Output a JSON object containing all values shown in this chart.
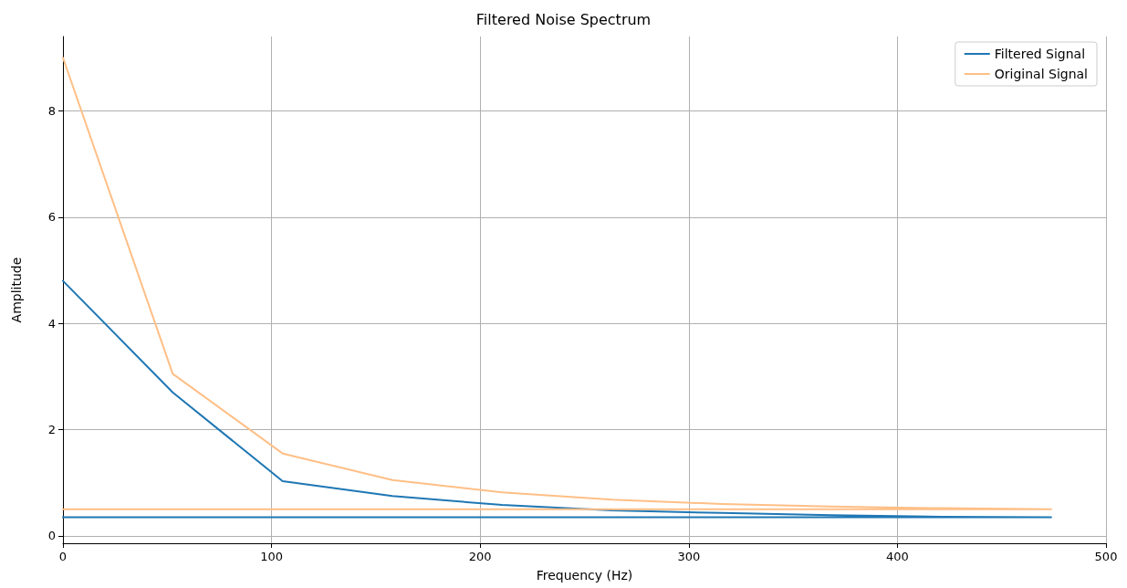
{
  "chart_data": {
    "type": "line",
    "title": "Filtered Noise Spectrum",
    "xlabel": "Frequency (Hz)",
    "ylabel": "Amplitude",
    "series": [
      {
        "name": "Filtered Signal",
        "color": "#1f77b4",
        "x": [
          0,
          52.6,
          105.3,
          157.9,
          210.5,
          263.2,
          315.8,
          368.4,
          421.1,
          473.7,
          0
        ],
        "values": [
          4.8,
          2.7,
          1.03,
          0.75,
          0.58,
          0.48,
          0.43,
          0.39,
          0.36,
          0.35,
          0.35
        ]
      },
      {
        "name": "Original Signal",
        "color": "#ffbf86",
        "x": [
          0,
          52.6,
          105.3,
          157.9,
          210.5,
          263.2,
          315.8,
          368.4,
          421.1,
          473.7,
          0
        ],
        "values": [
          9.0,
          3.05,
          1.55,
          1.05,
          0.82,
          0.68,
          0.6,
          0.55,
          0.52,
          0.5,
          0.5
        ]
      }
    ],
    "xlim": [
      0,
      500
    ],
    "xticks": [
      0,
      100,
      200,
      300,
      400,
      500
    ],
    "ylim": [
      -0.14,
      9.4
    ],
    "yticks": [
      0,
      2,
      4,
      6,
      8
    ],
    "grid": true,
    "legend": "top right",
    "marker": "none",
    "line_style": "solid"
  }
}
